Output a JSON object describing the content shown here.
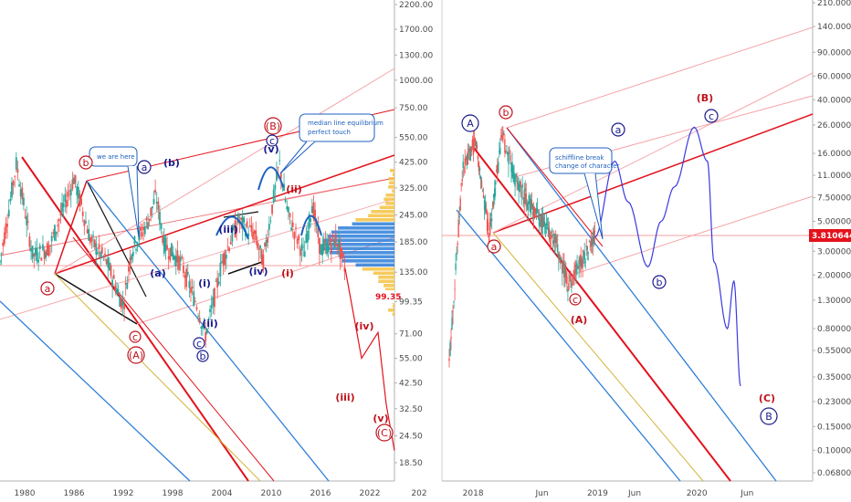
{
  "chart_data": [
    {
      "type": "line",
      "scale": "log",
      "x_ticks": [
        "1980",
        "1986",
        "1992",
        "1998",
        "2004",
        "2010",
        "2016",
        "2022",
        "202"
      ],
      "y_ticks": [
        "2200.00",
        "1700.00",
        "1300.00",
        "1000.00",
        "750.00",
        "550.00",
        "425.00",
        "325.00",
        "245.00",
        "185.00",
        "135.00",
        "99.35",
        "71.00",
        "55.00",
        "42.50",
        "32.50",
        "24.50",
        "18.50"
      ],
      "y_tick_values": [
        2200,
        1700,
        1300,
        1000,
        750,
        550,
        425,
        325,
        245,
        185,
        135,
        99.35,
        71,
        55,
        42.5,
        32.5,
        24.5,
        18.5
      ],
      "last_price": "99.35",
      "annotations": {
        "we_are_here": "we are here",
        "median_line_1": "median line equilibrium",
        "median_line_2": "perfect touch"
      },
      "wave_labels_red": [
        "a",
        "b",
        "(A)",
        "c",
        "(B)",
        "(i)",
        "(ii)",
        "(iii)",
        "(iv)",
        "(v)",
        "(C)"
      ],
      "wave_labels_blue": [
        "a",
        "(b)",
        "(a)",
        "(i)",
        "(ii)",
        "(iii)",
        "(iv)",
        "(v)",
        "c",
        "b",
        "c"
      ],
      "series": [
        {
          "values_by_year": [
            [
              1977,
              150
            ],
            [
              1979,
              420
            ],
            [
              1981,
              160
            ],
            [
              1983,
              175
            ],
            [
              1986,
              360
            ],
            [
              1988,
              190
            ],
            [
              1990,
              150
            ],
            [
              1992,
              95
            ],
            [
              1993,
              170
            ],
            [
              1995,
              230
            ],
            [
              1996,
              300
            ],
            [
              1997,
              180
            ],
            [
              1999,
              150
            ],
            [
              2001,
              95
            ],
            [
              2002,
              70
            ],
            [
              2003,
              100
            ],
            [
              2004,
              150
            ],
            [
              2006,
              230
            ],
            [
              2008,
              200
            ],
            [
              2009,
              150
            ],
            [
              2011,
              420
            ],
            [
              2012,
              250
            ],
            [
              2013,
              200
            ],
            [
              2014,
              160
            ],
            [
              2015,
              280
            ],
            [
              2016,
              170
            ],
            [
              2018,
              190
            ],
            [
              2019,
              140
            ]
          ]
        }
      ],
      "projection": [
        [
          2019,
          140
        ],
        [
          2021,
          55
        ],
        [
          2023,
          72
        ],
        [
          2024,
          34
        ],
        [
          2025,
          21
        ]
      ]
    },
    {
      "type": "line",
      "scale": "log",
      "x_ticks": [
        "2018",
        "Jun",
        "2019",
        "Jun",
        "2020",
        "Jun"
      ],
      "y_ticks": [
        "210.000000",
        "140.000000",
        "90.000000",
        "60.000000",
        "40.000000",
        "26.000000",
        "16.000000",
        "11.000000",
        "7.500000",
        "5.000000",
        "3.000000",
        "2.000000",
        "1.300000",
        "0.800000",
        "0.550000",
        "0.350000",
        "0.230000",
        "0.150000",
        "0.100000",
        "0.068000"
      ],
      "y_tick_values": [
        210,
        140,
        90,
        60,
        40,
        26,
        16,
        11,
        7.5,
        5,
        3,
        2,
        1.3,
        0.8,
        0.55,
        0.35,
        0.23,
        0.15,
        0.1,
        0.068
      ],
      "last_price": "3.810644",
      "annotations": {
        "schiff_1": "schiffline break",
        "schiff_2": "change of character"
      },
      "wave_labels_red": [
        "b",
        "a",
        "c",
        "(A)",
        "(B)",
        "(C)"
      ],
      "wave_labels_blue": [
        "A",
        "a",
        "b",
        "c",
        "B"
      ],
      "series": [
        {
          "values_by_month": [
            [
              0,
              0.45
            ],
            [
              1,
              12
            ],
            [
              2,
              20
            ],
            [
              3,
              4.0
            ],
            [
              4,
              22
            ],
            [
              5,
              10
            ],
            [
              6,
              7
            ],
            [
              7,
              5
            ],
            [
              8,
              3.5
            ],
            [
              9,
              1.7
            ],
            [
              10,
              2.6
            ],
            [
              11,
              3.8
            ]
          ]
        }
      ],
      "projection": [
        [
          11,
          3.8
        ],
        [
          12.5,
          14
        ],
        [
          13.5,
          7
        ],
        [
          15,
          2.3
        ],
        [
          16,
          5
        ],
        [
          17,
          9
        ],
        [
          18.5,
          25
        ],
        [
          19.5,
          14
        ],
        [
          20,
          2.5
        ],
        [
          21,
          0.8
        ],
        [
          21.5,
          1.8
        ],
        [
          22,
          0.3
        ]
      ]
    }
  ]
}
